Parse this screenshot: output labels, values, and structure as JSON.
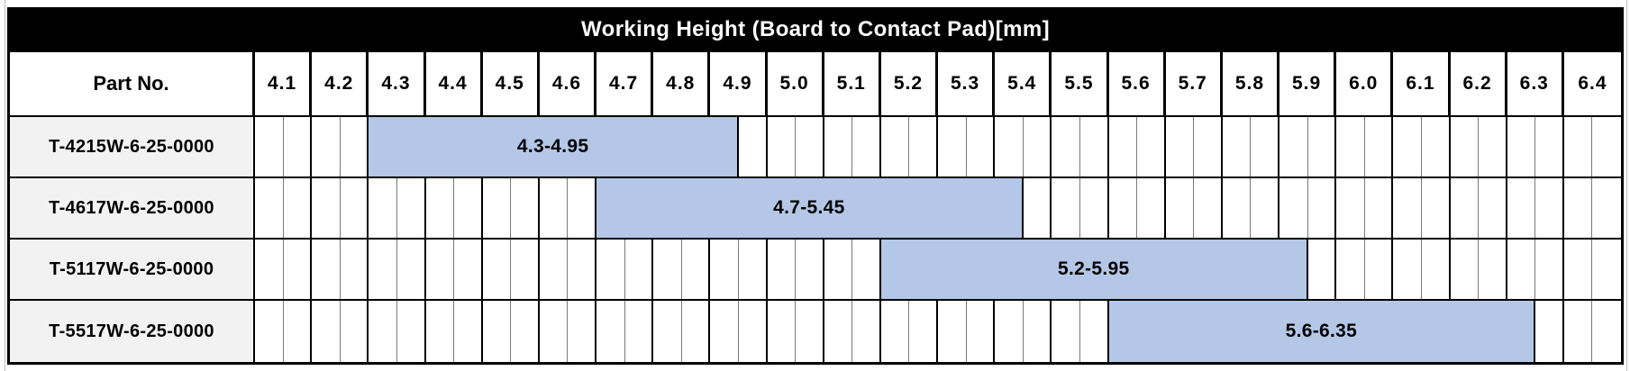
{
  "page": {
    "title": "Working Height (Board to Contact Pad)[mm]",
    "part_no_header": "Part No."
  },
  "table": {
    "min": 4.1,
    "step": 0.1,
    "substep": 0.05,
    "scale": [
      "4.1",
      "4.2",
      "4.3",
      "4.4",
      "4.5",
      "4.6",
      "4.7",
      "4.8",
      "4.9",
      "5.0",
      "5.1",
      "5.2",
      "5.3",
      "5.4",
      "5.5",
      "5.6",
      "5.7",
      "5.8",
      "5.9",
      "6.0",
      "6.1",
      "6.2",
      "6.3",
      "6.4"
    ],
    "rows": [
      {
        "part_no": "T-4215W-6-25-0000",
        "start": 4.3,
        "end": 4.95,
        "label": "4.3-4.95"
      },
      {
        "part_no": "T-4617W-6-25-0000",
        "start": 4.7,
        "end": 5.45,
        "label": "4.7-5.45"
      },
      {
        "part_no": "T-5117W-6-25-0000",
        "start": 5.2,
        "end": 5.95,
        "label": "5.2-5.95"
      },
      {
        "part_no": "T-5517W-6-25-0000",
        "start": 5.6,
        "end": 6.35,
        "label": "5.6-6.35"
      }
    ]
  },
  "colors": {
    "bar_fill": "#b4c7e7",
    "title_bg": "#000000",
    "title_text": "#ffffff",
    "part_cell_bg": "#f2f2f2",
    "grid_minor": "#7a7a7a",
    "grid_major": "#000000"
  },
  "chart_data": {
    "type": "bar",
    "variant": "horizontal-range",
    "title": "Working Height (Board to Contact Pad)[mm]",
    "categories": [
      "T-4215W-6-25-0000",
      "T-4617W-6-25-0000",
      "T-5117W-6-25-0000",
      "T-5517W-6-25-0000"
    ],
    "series": [
      {
        "name": "Working Height (Board to Contact Pad) [mm]",
        "ranges": [
          [
            4.3,
            4.95
          ],
          [
            4.7,
            5.45
          ],
          [
            5.2,
            5.95
          ],
          [
            5.6,
            6.35
          ]
        ],
        "labels": [
          "4.3-4.95",
          "4.7-5.45",
          "5.2-5.95",
          "5.6-6.35"
        ]
      }
    ],
    "x_ticks": [
      4.1,
      4.2,
      4.3,
      4.4,
      4.5,
      4.6,
      4.7,
      4.8,
      4.9,
      5.0,
      5.1,
      5.2,
      5.3,
      5.4,
      5.5,
      5.6,
      5.7,
      5.8,
      5.9,
      6.0,
      6.1,
      6.2,
      6.3,
      6.4
    ],
    "xlim": [
      4.1,
      6.5
    ],
    "x_minor_step": 0.05,
    "grid": true,
    "legend": false
  }
}
